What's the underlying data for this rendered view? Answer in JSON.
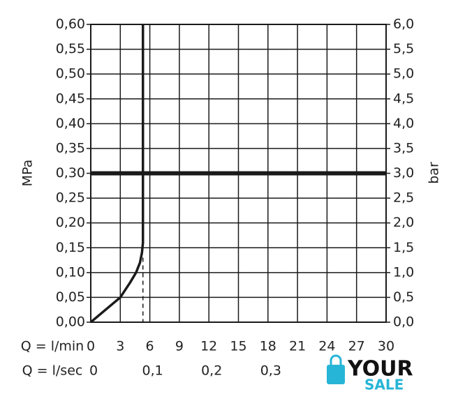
{
  "chart_data": {
    "type": "line",
    "y_label": "MPa",
    "y2_label": "bar",
    "x_label": "Q = l/min",
    "x2_label": "Q = l/sec",
    "xlim": [
      0,
      30
    ],
    "xticks": [
      0,
      3,
      6,
      9,
      12,
      15,
      18,
      21,
      24,
      27,
      30
    ],
    "x2lim": [
      0,
      0.5
    ],
    "x2ticks": [
      0,
      {
        "value": 0.1,
        "label": "0,1"
      },
      {
        "value": 0.2,
        "label": "0,2"
      },
      {
        "value": 0.3,
        "label": "0,3"
      }
    ],
    "ylim": [
      0,
      0.6
    ],
    "yticks": [
      {
        "value": 0,
        "label": "0,00"
      },
      {
        "value": 0.05,
        "label": "0,05"
      },
      {
        "value": 0.1,
        "label": "0,10"
      },
      {
        "value": 0.15,
        "label": "0,15"
      },
      {
        "value": 0.2,
        "label": "0,20"
      },
      {
        "value": 0.25,
        "label": "0,25"
      },
      {
        "value": 0.3,
        "label": "0,30"
      },
      {
        "value": 0.35,
        "label": "0,35"
      },
      {
        "value": 0.4,
        "label": "0,40"
      },
      {
        "value": 0.45,
        "label": "0,45"
      },
      {
        "value": 0.5,
        "label": "0,50"
      },
      {
        "value": 0.55,
        "label": "0,55"
      },
      {
        "value": 0.6,
        "label": "0,60"
      }
    ],
    "y2lim": [
      0,
      6
    ],
    "y2ticks": [
      {
        "value": 0,
        "label": "0,0"
      },
      {
        "value": 0.5,
        "label": "0,5"
      },
      {
        "value": 1,
        "label": "1,0"
      },
      {
        "value": 1.5,
        "label": "1,5"
      },
      {
        "value": 2,
        "label": "2,0"
      },
      {
        "value": 2.5,
        "label": "2,5"
      },
      {
        "value": 3,
        "label": "3,0"
      },
      {
        "value": 3.5,
        "label": "3,5"
      },
      {
        "value": 4,
        "label": "4,0"
      },
      {
        "value": 4.5,
        "label": "4,5"
      },
      {
        "value": 5,
        "label": "5,0"
      },
      {
        "value": 5.5,
        "label": "5,5"
      },
      {
        "value": 6,
        "label": "6,0"
      }
    ],
    "grid": true,
    "series": [
      {
        "color": "#1a1a1a",
        "width": 3.5,
        "dashed": false,
        "x": [
          0,
          1.5,
          3,
          4,
          4.6,
          5.0,
          5.2,
          5.3,
          5.3
        ],
        "values": [
          0,
          0.025,
          0.05,
          0.08,
          0.1,
          0.12,
          0.14,
          0.16,
          0.6
        ]
      },
      {
        "color": "#1a1a1a",
        "width": 6,
        "dashed": false,
        "x": [
          0,
          30
        ],
        "values": [
          0.3,
          0.3
        ]
      },
      {
        "color": "#1a1a1a",
        "width": 1.5,
        "dashed": true,
        "x": [
          5.3,
          5.3
        ],
        "values": [
          0.13,
          0
        ]
      }
    ],
    "watermark": [
      "YOUR",
      "SALE"
    ]
  }
}
